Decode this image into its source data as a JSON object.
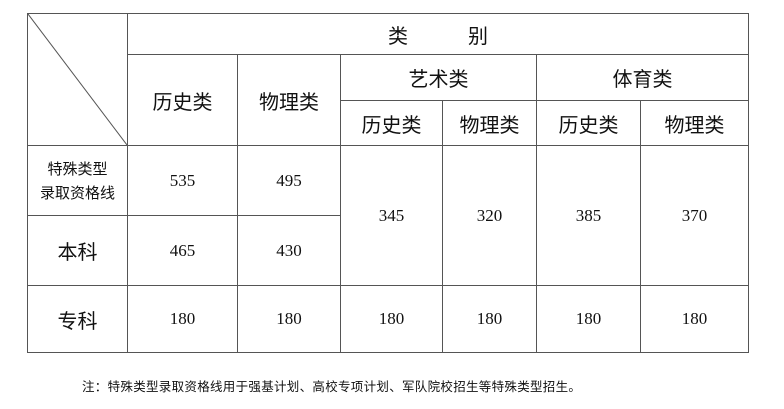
{
  "header": {
    "category": "类　　　别",
    "history": "历史类",
    "physics": "物理类",
    "art": "艺术类",
    "sports": "体育类",
    "art_history": "历史类",
    "art_physics": "物理类",
    "sports_history": "历史类",
    "sports_physics": "物理类"
  },
  "rows": {
    "special": {
      "label_line1": "特殊类型",
      "label_line2": "录取资格线",
      "history": "535",
      "physics": "495"
    },
    "undergrad": {
      "label": "本科",
      "history": "465",
      "physics": "430"
    },
    "art_sports_merged": {
      "art_history": "345",
      "art_physics": "320",
      "sports_history": "385",
      "sports_physics": "370"
    },
    "junior": {
      "label": "专科",
      "history": "180",
      "physics": "180",
      "art_history": "180",
      "art_physics": "180",
      "sports_history": "180",
      "sports_physics": "180"
    }
  },
  "footnote": "注：特殊类型录取资格线用于强基计划、高校专项计划、军队院校招生等特殊类型招生。"
}
